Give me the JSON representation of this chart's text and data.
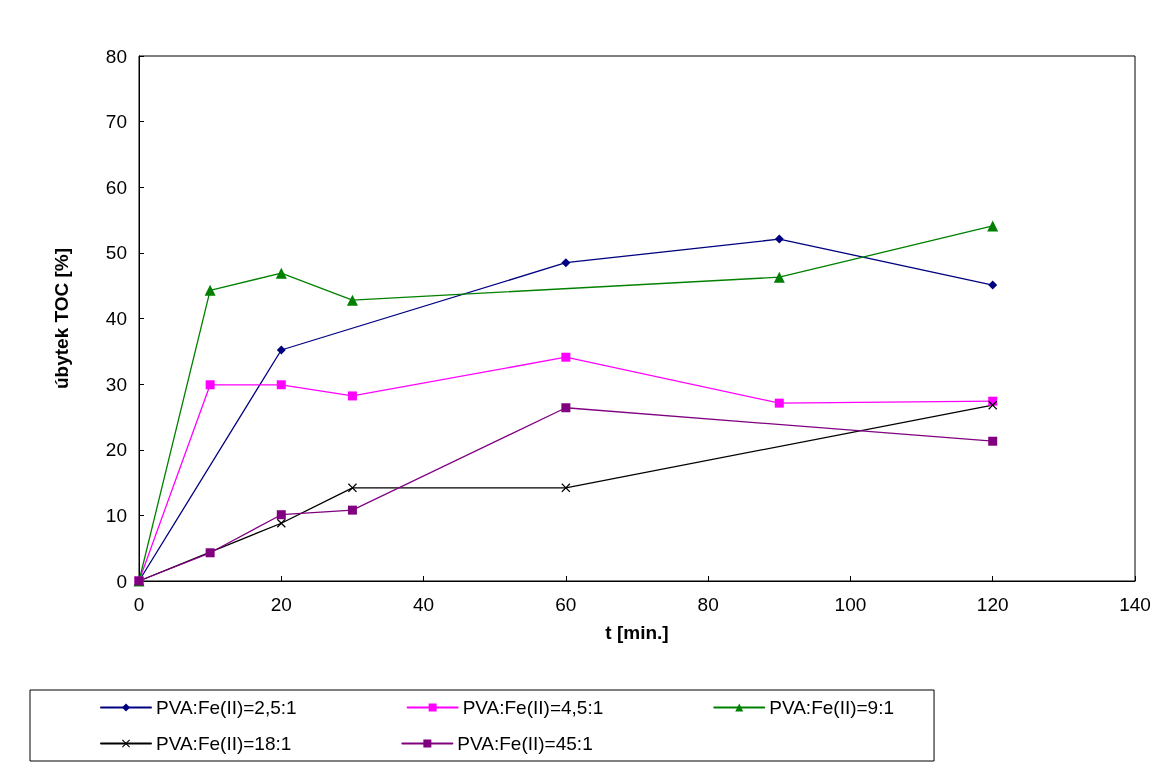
{
  "chart_data": {
    "type": "line",
    "xlabel": "t [min.]",
    "ylabel": "úbytek TOC [%]",
    "xlim": [
      0,
      140
    ],
    "xticks": [
      0,
      20,
      40,
      60,
      80,
      100,
      120,
      140
    ],
    "ylim": [
      0,
      80
    ],
    "yticks": [
      0,
      10,
      20,
      30,
      40,
      50,
      60,
      70,
      80
    ],
    "grid": false,
    "legend": "bottom",
    "line_style": "solid",
    "series": [
      {
        "name": "PVA:Fe(II)=2,5:1",
        "color": "#000080",
        "marker": "diamond",
        "x": [
          0,
          20,
          60,
          90,
          120
        ],
        "values": [
          0,
          35.2,
          48.5,
          52.1,
          45.1
        ]
      },
      {
        "name": "PVA:Fe(II)=4,5:1",
        "color": "#ff00ff",
        "marker": "square",
        "x": [
          0,
          10,
          20,
          30,
          60,
          90,
          120
        ],
        "values": [
          0,
          29.9,
          29.9,
          28.2,
          34.1,
          27.1,
          27.4
        ]
      },
      {
        "name": "PVA:Fe(II)=9:1",
        "color": "#008000",
        "marker": "triangle",
        "x": [
          0,
          10,
          20,
          30,
          90,
          120
        ],
        "values": [
          0,
          44.3,
          46.9,
          42.8,
          46.3,
          54.1
        ]
      },
      {
        "name": "PVA:Fe(II)=18:1",
        "color": "#000000",
        "marker": "cross",
        "x": [
          0,
          20,
          30,
          60,
          120
        ],
        "values": [
          0,
          8.8,
          14.2,
          14.2,
          26.8
        ]
      },
      {
        "name": "PVA:Fe(II)=45:1",
        "color": "#800080",
        "marker": "square",
        "x": [
          0,
          10,
          20,
          30,
          60,
          120
        ],
        "values": [
          0,
          4.3,
          10.1,
          10.8,
          26.4,
          21.3
        ]
      }
    ]
  }
}
